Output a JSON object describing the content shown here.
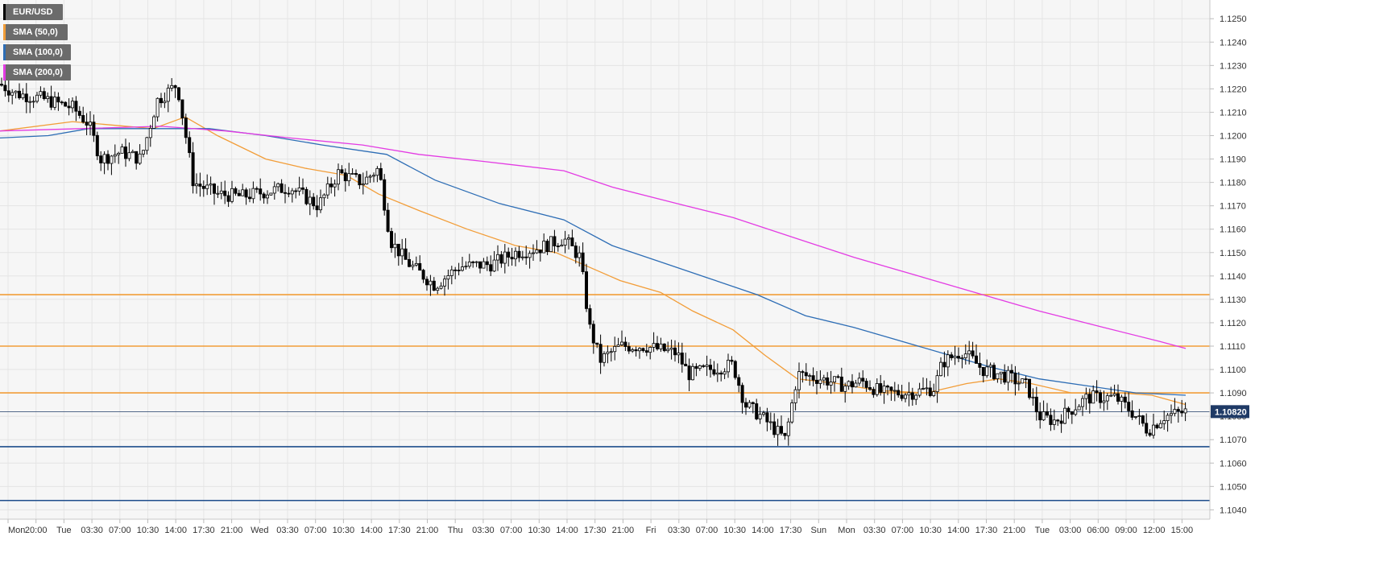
{
  "chart_data": {
    "type": "candlestick",
    "symbol": "EUR/USD",
    "y_range": [
      1.1036,
      1.1258
    ],
    "y_ticks": [
      "1.1250",
      "1.1240",
      "1.1230",
      "1.1220",
      "1.1210",
      "1.1200",
      "1.1190",
      "1.1180",
      "1.1170",
      "1.1160",
      "1.1150",
      "1.1140",
      "1.1130",
      "1.1120",
      "1.1110",
      "1.1100",
      "1.1090",
      "1.1080",
      "1.1070",
      "1.1060",
      "1.1050",
      "1.1040"
    ],
    "x_ticks": [
      "Mon",
      "20:00",
      "Tue",
      "03:30",
      "07:00",
      "10:30",
      "14:00",
      "17:30",
      "21:00",
      "Wed",
      "03:30",
      "07:00",
      "10:30",
      "14:00",
      "17:30",
      "21:00",
      "Thu",
      "03:30",
      "07:00",
      "10:30",
      "14:00",
      "17:30",
      "21:00",
      "Fri",
      "03:30",
      "07:00",
      "10:30",
      "14:00",
      "17:30",
      "Sun",
      "Mon",
      "03:30",
      "07:00",
      "10:30",
      "14:00",
      "17:30",
      "21:00",
      "Tue",
      "03:00",
      "06:00",
      "09:00",
      "12:00",
      "15:00"
    ],
    "current_price": {
      "label": "1.10820",
      "value": 1.1082
    },
    "horizontal_levels": [
      {
        "value": 1.1132,
        "color": "#f29d38"
      },
      {
        "value": 1.111,
        "color": "#f29d38"
      },
      {
        "value": 1.109,
        "color": "#f29d38"
      },
      {
        "value": 1.1067,
        "color": "#1f4e8c"
      },
      {
        "value": 1.1044,
        "color": "#1f4e8c"
      }
    ],
    "legend": [
      {
        "label": "EUR/USD",
        "color": "#000000"
      },
      {
        "label": "SMA (50,0)",
        "color": "#f29d38"
      },
      {
        "label": "SMA (100,0)",
        "color": "#2d6db5"
      },
      {
        "label": "SMA (200,0)",
        "color": "#e33be3"
      }
    ],
    "price_path": [
      [
        0,
        1.1222
      ],
      [
        20,
        1.1218
      ],
      [
        50,
        1.1216
      ],
      [
        90,
        1.1212
      ],
      [
        110,
        1.1205
      ],
      [
        125,
        1.119
      ],
      [
        150,
        1.1193
      ],
      [
        175,
        1.119
      ],
      [
        195,
        1.1215
      ],
      [
        220,
        1.1222
      ],
      [
        233,
        1.1195
      ],
      [
        240,
        1.118
      ],
      [
        270,
        1.1175
      ],
      [
        300,
        1.1174
      ],
      [
        330,
        1.1176
      ],
      [
        360,
        1.1178
      ],
      [
        395,
        1.117
      ],
      [
        420,
        1.1184
      ],
      [
        450,
        1.118
      ],
      [
        470,
        1.1186
      ],
      [
        485,
        1.1155
      ],
      [
        505,
        1.1146
      ],
      [
        540,
        1.1136
      ],
      [
        570,
        1.1144
      ],
      [
        610,
        1.1145
      ],
      [
        640,
        1.115
      ],
      [
        670,
        1.1152
      ],
      [
        700,
        1.1156
      ],
      [
        720,
        1.1148
      ],
      [
        732,
        1.1118
      ],
      [
        745,
        1.1104
      ],
      [
        770,
        1.111
      ],
      [
        800,
        1.111
      ],
      [
        840,
        1.1107
      ],
      [
        855,
        1.1098
      ],
      [
        880,
        1.11
      ],
      [
        910,
        1.1102
      ],
      [
        925,
        1.1085
      ],
      [
        945,
        1.108
      ],
      [
        975,
        1.107
      ],
      [
        990,
        1.1098
      ],
      [
        1020,
        1.1096
      ],
      [
        1050,
        1.1093
      ],
      [
        1070,
        1.1095
      ],
      [
        1095,
        1.109
      ],
      [
        1130,
        1.109
      ],
      [
        1160,
        1.1092
      ],
      [
        1170,
        1.1103
      ],
      [
        1195,
        1.1108
      ],
      [
        1220,
        1.11
      ],
      [
        1250,
        1.1097
      ],
      [
        1275,
        1.1093
      ],
      [
        1290,
        1.108
      ],
      [
        1310,
        1.1078
      ],
      [
        1350,
        1.1088
      ],
      [
        1385,
        1.1088
      ],
      [
        1405,
        1.1082
      ],
      [
        1425,
        1.1074
      ],
      [
        1445,
        1.108
      ],
      [
        1472,
        1.1082
      ]
    ],
    "sma_50": [
      [
        0,
        1.1202
      ],
      [
        90,
        1.1206
      ],
      [
        190,
        1.1203
      ],
      [
        230,
        1.1208
      ],
      [
        270,
        1.12
      ],
      [
        330,
        1.119
      ],
      [
        380,
        1.1186
      ],
      [
        430,
        1.1183
      ],
      [
        470,
        1.1175
      ],
      [
        520,
        1.1168
      ],
      [
        580,
        1.116
      ],
      [
        640,
        1.1153
      ],
      [
        690,
        1.115
      ],
      [
        730,
        1.1144
      ],
      [
        770,
        1.1138
      ],
      [
        820,
        1.1133
      ],
      [
        860,
        1.1125
      ],
      [
        910,
        1.1117
      ],
      [
        950,
        1.1106
      ],
      [
        990,
        1.1096
      ],
      [
        1040,
        1.1094
      ],
      [
        1090,
        1.1091
      ],
      [
        1150,
        1.109
      ],
      [
        1200,
        1.1094
      ],
      [
        1240,
        1.1096
      ],
      [
        1280,
        1.1094
      ],
      [
        1330,
        1.109
      ],
      [
        1390,
        1.109
      ],
      [
        1430,
        1.1089
      ],
      [
        1472,
        1.1085
      ]
    ],
    "sma_100": [
      [
        0,
        1.1199
      ],
      [
        60,
        1.12
      ],
      [
        110,
        1.1203
      ],
      [
        180,
        1.1203
      ],
      [
        260,
        1.1203
      ],
      [
        330,
        1.12
      ],
      [
        400,
        1.1196
      ],
      [
        480,
        1.1192
      ],
      [
        540,
        1.1181
      ],
      [
        620,
        1.1171
      ],
      [
        700,
        1.1164
      ],
      [
        760,
        1.1153
      ],
      [
        820,
        1.1146
      ],
      [
        880,
        1.1139
      ],
      [
        940,
        1.1132
      ],
      [
        1000,
        1.1123
      ],
      [
        1060,
        1.1118
      ],
      [
        1110,
        1.1113
      ],
      [
        1170,
        1.1107
      ],
      [
        1230,
        1.1101
      ],
      [
        1290,
        1.1096
      ],
      [
        1350,
        1.1093
      ],
      [
        1410,
        1.109
      ],
      [
        1472,
        1.1089
      ]
    ],
    "sma_200": [
      [
        0,
        1.1202
      ],
      [
        100,
        1.1203
      ],
      [
        200,
        1.1204
      ],
      [
        280,
        1.1202
      ],
      [
        360,
        1.1199
      ],
      [
        450,
        1.1196
      ],
      [
        520,
        1.1192
      ],
      [
        600,
        1.1189
      ],
      [
        700,
        1.1185
      ],
      [
        760,
        1.1178
      ],
      [
        840,
        1.1171
      ],
      [
        910,
        1.1165
      ],
      [
        980,
        1.1157
      ],
      [
        1060,
        1.1148
      ],
      [
        1150,
        1.1139
      ],
      [
        1220,
        1.1132
      ],
      [
        1290,
        1.1125
      ],
      [
        1370,
        1.1118
      ],
      [
        1440,
        1.1112
      ],
      [
        1472,
        1.1109
      ]
    ]
  }
}
